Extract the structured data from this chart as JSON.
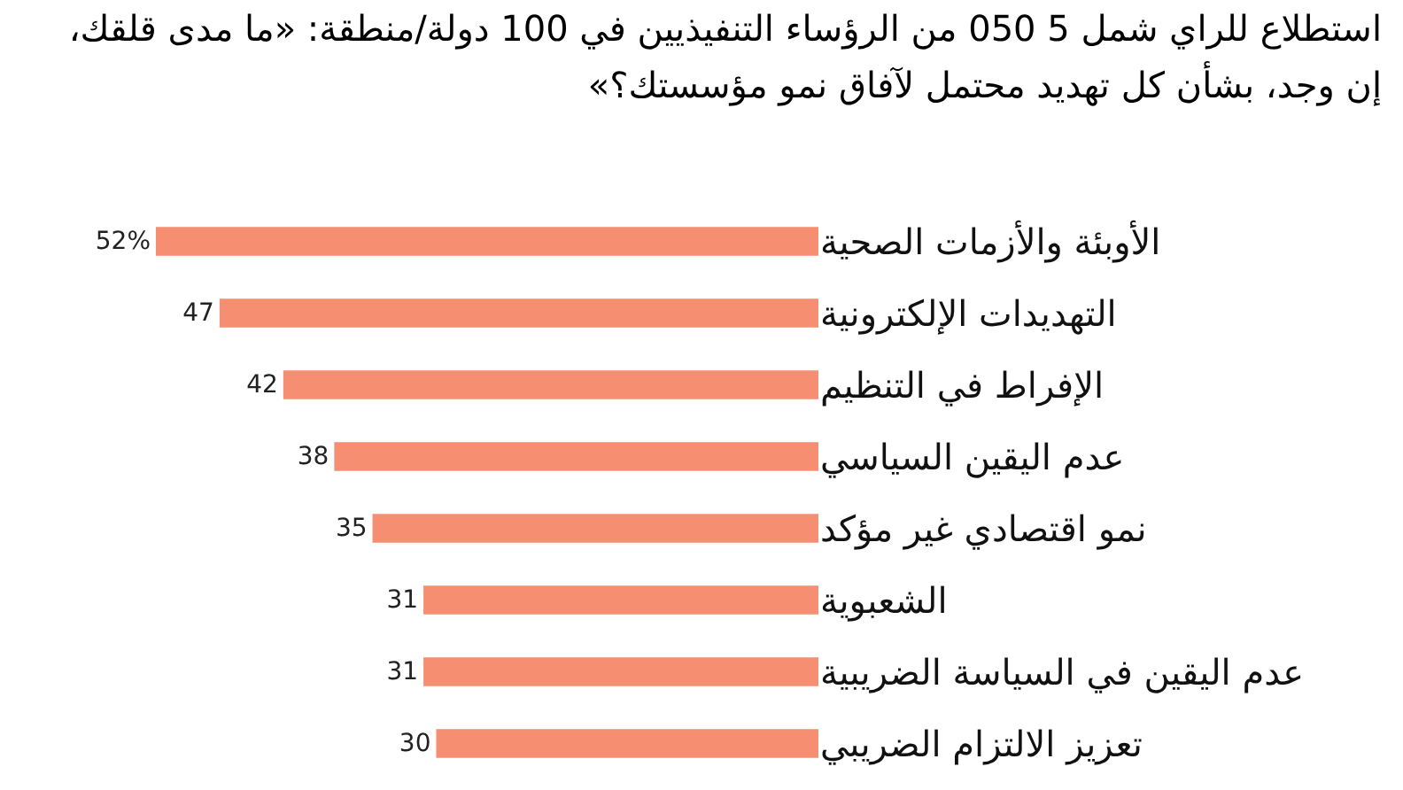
{
  "chart_data": {
    "type": "bar",
    "orientation": "horizontal",
    "title": "استطلاع للراي شمل 5 050 من الرؤساء التنفيذيين في 100 دولة/منطقة: «ما مدى قلقك، إن وجد، بشأن كل تهديد محتمل لآفاق نمو مؤسستك؟»",
    "categories": [
      "الأوبئة والأزمات الصحية",
      "التهديدات الإلكترونية",
      "الإفراط في التنظيم",
      "عدم اليقين السياسي",
      "نمو اقتصادي غير مؤكد",
      "الشعبوية",
      "عدم اليقين في السياسة الضريبية",
      "تعزيز الالتزام الضريبي"
    ],
    "values": [
      52,
      47,
      42,
      38,
      35,
      31,
      31,
      30
    ],
    "value_labels": [
      "52%",
      "47",
      "42",
      "38",
      "35",
      "31",
      "31",
      "30"
    ],
    "color": "#f68e72",
    "grid": false,
    "legend": false
  }
}
